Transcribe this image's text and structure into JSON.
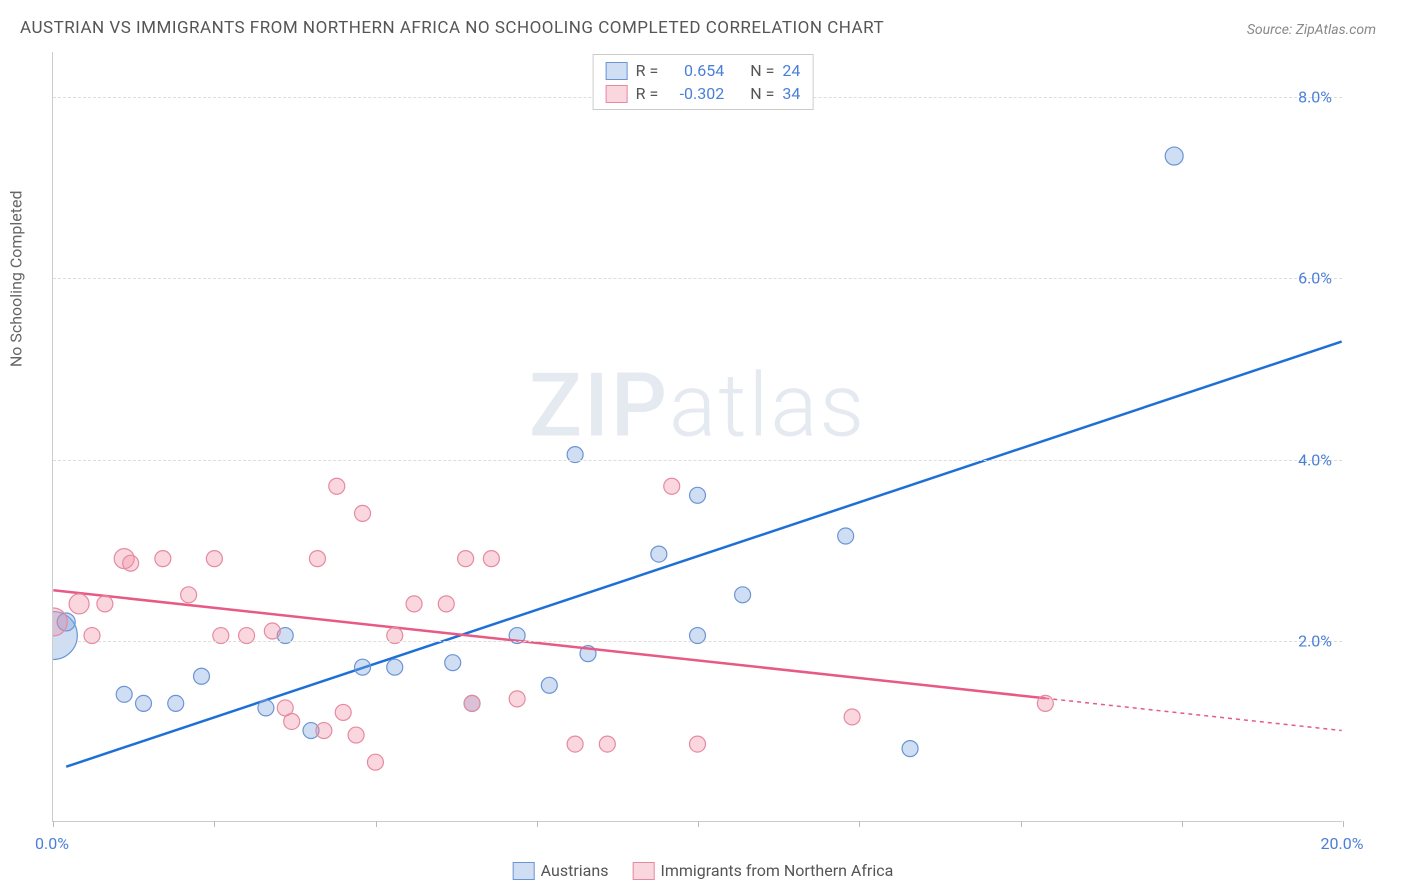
{
  "title": "AUSTRIAN VS IMMIGRANTS FROM NORTHERN AFRICA NO SCHOOLING COMPLETED CORRELATION CHART",
  "source": "Source: ZipAtlas.com",
  "y_axis_label": "No Schooling Completed",
  "watermark_bold": "ZIP",
  "watermark_light": "atlas",
  "chart": {
    "type": "scatter",
    "xlim": [
      0,
      20
    ],
    "ylim": [
      0,
      8.5
    ],
    "x_ticks": [
      0,
      2.5,
      5,
      7.5,
      10,
      12.5,
      15,
      17.5,
      20
    ],
    "x_tick_labels": {
      "0": "0.0%",
      "20": "20.0%"
    },
    "y_ticks": [
      2,
      4,
      6,
      8
    ],
    "y_tick_labels": [
      "2.0%",
      "4.0%",
      "6.0%",
      "8.0%"
    ],
    "background_color": "#ffffff",
    "grid_color": "#dddddd",
    "series": [
      {
        "name": "Austrians",
        "color_fill": "rgba(120,160,220,0.35)",
        "color_stroke": "#6a95d4",
        "r_value": "0.654",
        "n_value": "24",
        "trend": {
          "x1": 0.2,
          "y1": 0.6,
          "x2": 20,
          "y2": 5.3,
          "stroke": "#1f6fd8",
          "dash_from": null
        },
        "points": [
          {
            "x": 0.0,
            "y": 2.05,
            "r": 24
          },
          {
            "x": 0.2,
            "y": 2.2,
            "r": 9
          },
          {
            "x": 1.1,
            "y": 1.4,
            "r": 8
          },
          {
            "x": 1.4,
            "y": 1.3,
            "r": 8
          },
          {
            "x": 1.9,
            "y": 1.3,
            "r": 8
          },
          {
            "x": 2.3,
            "y": 1.6,
            "r": 8
          },
          {
            "x": 3.3,
            "y": 1.25,
            "r": 8
          },
          {
            "x": 4.0,
            "y": 1.0,
            "r": 8
          },
          {
            "x": 3.6,
            "y": 2.05,
            "r": 8
          },
          {
            "x": 4.8,
            "y": 1.7,
            "r": 8
          },
          {
            "x": 5.3,
            "y": 1.7,
            "r": 8
          },
          {
            "x": 6.2,
            "y": 1.75,
            "r": 8
          },
          {
            "x": 6.5,
            "y": 1.3,
            "r": 8
          },
          {
            "x": 7.7,
            "y": 1.5,
            "r": 8
          },
          {
            "x": 7.2,
            "y": 2.05,
            "r": 8
          },
          {
            "x": 8.1,
            "y": 4.05,
            "r": 8
          },
          {
            "x": 8.3,
            "y": 1.85,
            "r": 8
          },
          {
            "x": 9.4,
            "y": 2.95,
            "r": 8
          },
          {
            "x": 10.0,
            "y": 3.6,
            "r": 8
          },
          {
            "x": 10.0,
            "y": 2.05,
            "r": 8
          },
          {
            "x": 10.7,
            "y": 2.5,
            "r": 8
          },
          {
            "x": 12.3,
            "y": 3.15,
            "r": 8
          },
          {
            "x": 13.3,
            "y": 0.8,
            "r": 8
          },
          {
            "x": 17.4,
            "y": 7.35,
            "r": 9
          }
        ]
      },
      {
        "name": "Immigrants from Northern Africa",
        "color_fill": "rgba(240,140,160,0.35)",
        "color_stroke": "#e68aa0",
        "r_value": "-0.302",
        "n_value": "34",
        "trend": {
          "x1": 0,
          "y1": 2.55,
          "x2": 20,
          "y2": 1.0,
          "stroke": "#e65a84",
          "dash_from": 15.4
        },
        "points": [
          {
            "x": 0.0,
            "y": 2.2,
            "r": 14
          },
          {
            "x": 0.4,
            "y": 2.4,
            "r": 10
          },
          {
            "x": 0.6,
            "y": 2.05,
            "r": 8
          },
          {
            "x": 0.8,
            "y": 2.4,
            "r": 8
          },
          {
            "x": 1.1,
            "y": 2.9,
            "r": 10
          },
          {
            "x": 1.2,
            "y": 2.85,
            "r": 8
          },
          {
            "x": 1.7,
            "y": 2.9,
            "r": 8
          },
          {
            "x": 2.1,
            "y": 2.5,
            "r": 8
          },
          {
            "x": 2.5,
            "y": 2.9,
            "r": 8
          },
          {
            "x": 2.6,
            "y": 2.05,
            "r": 8
          },
          {
            "x": 3.0,
            "y": 2.05,
            "r": 8
          },
          {
            "x": 3.4,
            "y": 2.1,
            "r": 8
          },
          {
            "x": 3.6,
            "y": 1.25,
            "r": 8
          },
          {
            "x": 3.7,
            "y": 1.1,
            "r": 8
          },
          {
            "x": 4.1,
            "y": 2.9,
            "r": 8
          },
          {
            "x": 4.2,
            "y": 1.0,
            "r": 8
          },
          {
            "x": 4.5,
            "y": 1.2,
            "r": 8
          },
          {
            "x": 4.7,
            "y": 0.95,
            "r": 8
          },
          {
            "x": 4.8,
            "y": 3.4,
            "r": 8
          },
          {
            "x": 4.4,
            "y": 3.7,
            "r": 8
          },
          {
            "x": 5.3,
            "y": 2.05,
            "r": 8
          },
          {
            "x": 5.0,
            "y": 0.65,
            "r": 8
          },
          {
            "x": 5.6,
            "y": 2.4,
            "r": 8
          },
          {
            "x": 6.1,
            "y": 2.4,
            "r": 8
          },
          {
            "x": 6.4,
            "y": 2.9,
            "r": 8
          },
          {
            "x": 6.5,
            "y": 1.3,
            "r": 8
          },
          {
            "x": 6.8,
            "y": 2.9,
            "r": 8
          },
          {
            "x": 7.2,
            "y": 1.35,
            "r": 8
          },
          {
            "x": 8.1,
            "y": 0.85,
            "r": 8
          },
          {
            "x": 8.6,
            "y": 0.85,
            "r": 8
          },
          {
            "x": 9.6,
            "y": 3.7,
            "r": 8
          },
          {
            "x": 10.0,
            "y": 0.85,
            "r": 8
          },
          {
            "x": 12.4,
            "y": 1.15,
            "r": 8
          },
          {
            "x": 15.4,
            "y": 1.3,
            "r": 8
          }
        ]
      }
    ],
    "legend_top": {
      "r_label": "R =",
      "n_label": "N ="
    },
    "legend_bottom_labels": [
      "Austrians",
      "Immigrants from Northern Africa"
    ]
  }
}
